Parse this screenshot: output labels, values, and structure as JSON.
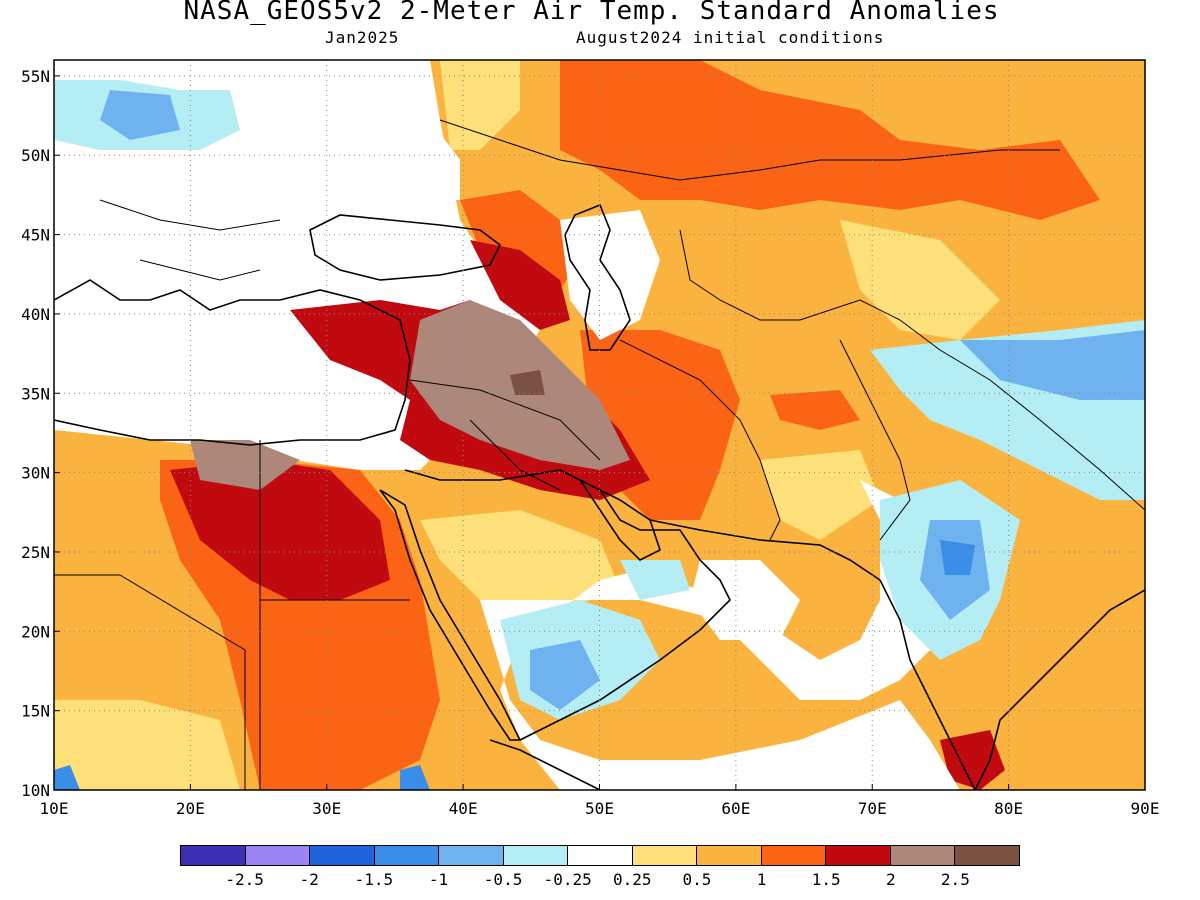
{
  "title": "NASA_GEOS5v2 2-Meter Air Temp. Standard Anomalies",
  "subtitle_left": "Jan2025",
  "subtitle_right": "August2024 initial conditions",
  "map": {
    "lon_range": [
      10,
      90
    ],
    "lat_range": [
      10,
      56
    ],
    "lon_ticks": [
      "10E",
      "20E",
      "30E",
      "40E",
      "50E",
      "60E",
      "70E",
      "80E",
      "90E"
    ],
    "lat_ticks": [
      "10N",
      "15N",
      "20N",
      "25N",
      "30N",
      "35N",
      "40N",
      "45N",
      "50N",
      "55N"
    ],
    "gridlines": "dotted"
  },
  "colorbar": {
    "colors": [
      "#3f2fb4",
      "#9b85f2",
      "#1f64dc",
      "#3b8ee8",
      "#6fb2f0",
      "#b4eef4",
      "#ffffff",
      "#fde07a",
      "#fbb33f",
      "#fb6414",
      "#c00a10",
      "#ad877a",
      "#7b5242"
    ],
    "labels": [
      "-2.5",
      "-2",
      "-1.5",
      "-1",
      "-0.5",
      "-0.25",
      "0.25",
      "0.5",
      "1",
      "1.5",
      "2",
      "2.5"
    ]
  }
}
